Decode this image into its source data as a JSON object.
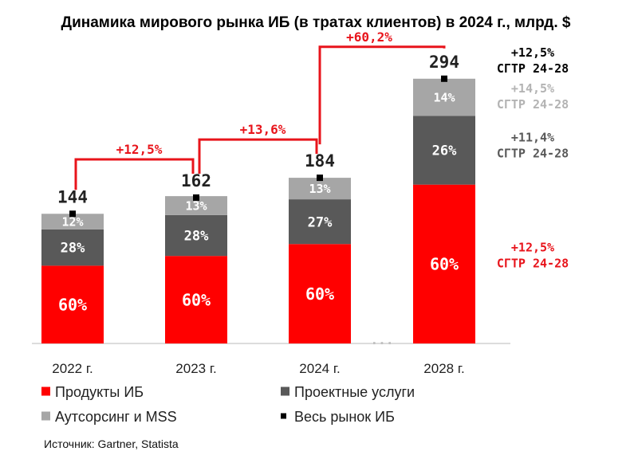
{
  "chart_data": {
    "type": "bar",
    "stacked": true,
    "title": "Динамика мирового рынка ИБ (в тратах клиентов) в 2024 г., млрд. $",
    "categories": [
      "2022 г.",
      "2023 г.",
      "2024 г.",
      "2028 г."
    ],
    "gap_marker": "...",
    "totals": [
      144,
      162,
      184,
      294
    ],
    "total_labels": [
      "144",
      "162",
      "184",
      "294"
    ],
    "series": [
      {
        "name": "Продукты ИБ",
        "color": "#ff0000",
        "share": [
          60,
          60,
          60,
          60
        ],
        "labels": [
          "60%",
          "60%",
          "60%",
          "60%"
        ]
      },
      {
        "name": "Проектные услуги",
        "color": "#595959",
        "share": [
          28,
          28,
          27,
          26
        ],
        "labels": [
          "28%",
          "28%",
          "27%",
          "26%"
        ]
      },
      {
        "name": "Аутсорсинг и MSS",
        "color": "#a6a6a6",
        "share": [
          12,
          13,
          13,
          14
        ],
        "labels": [
          "12%",
          "13%",
          "13%",
          "14%"
        ]
      }
    ],
    "total_series": {
      "name": "Весь рынок ИБ",
      "color": "#000000",
      "marker": "square"
    },
    "growth_annotations": [
      {
        "from": "2022 г.",
        "to": "2023 г.",
        "label": "+12,5%"
      },
      {
        "from": "2023 г.",
        "to": "2024 г.",
        "label": "+13,6%"
      },
      {
        "from": "2024 г.",
        "to": "2028 г.",
        "label": "+60,2%"
      }
    ],
    "cagr_annotations": [
      {
        "target": "Весь рынок ИБ",
        "value": "+12,5%",
        "label": "CГТР 24-28",
        "color": "#000000"
      },
      {
        "target": "Аутсорсинг и MSS",
        "value": "+14,5%",
        "label": "CГТР 24-28",
        "color": "#b3b3b3"
      },
      {
        "target": "Проектные услуги",
        "value": "+11,4%",
        "label": "CГТР 24-28",
        "color": "#595959"
      },
      {
        "target": "Продукты ИБ",
        "value": "+12,5%",
        "label": "CГТР 24-28",
        "color": "#e8141b"
      }
    ],
    "legend": [
      "Продукты ИБ",
      "Проектные услуги",
      "Аутсорсинг и MSS",
      "Весь рынок ИБ"
    ],
    "legend_position": "bottom",
    "grid": false,
    "ylim": [
      0,
      294
    ]
  },
  "source": "Источник: Gartner, Statista"
}
